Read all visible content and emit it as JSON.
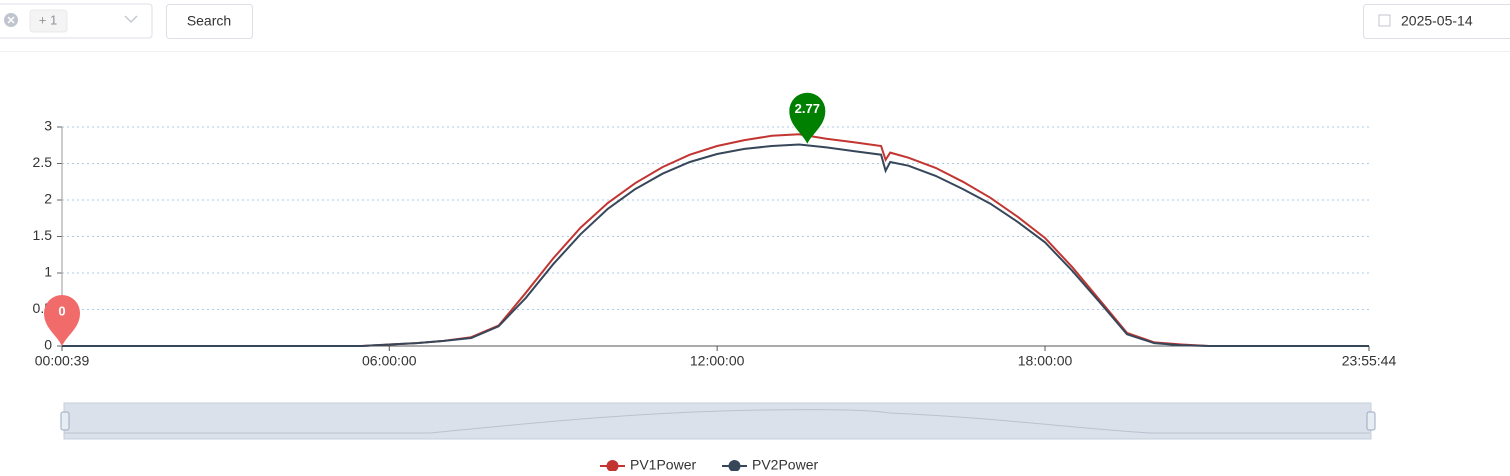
{
  "toolbar": {
    "tag": "+ 1",
    "search_button": "Search",
    "date": "2025-05-14"
  },
  "chart_data": {
    "type": "line",
    "x": [
      "00:00:39",
      "05:30:00",
      "06:00:00",
      "06:30:00",
      "07:00:00",
      "07:30:00",
      "08:00:00",
      "08:30:00",
      "09:00:00",
      "09:30:00",
      "10:00:00",
      "10:30:00",
      "11:00:00",
      "11:30:00",
      "12:00:00",
      "12:30:00",
      "13:00:00",
      "13:30:00",
      "14:00:00",
      "14:30:00",
      "15:00:00",
      "15:05:00",
      "15:10:00",
      "15:30:00",
      "16:00:00",
      "16:30:00",
      "17:00:00",
      "17:30:00",
      "18:00:00",
      "18:30:00",
      "19:00:00",
      "19:30:00",
      "20:00:00",
      "20:30:00",
      "21:00:00",
      "23:55:44"
    ],
    "series": [
      {
        "name": "PV1Power",
        "color": "#c23531",
        "values": [
          0,
          0,
          0.02,
          0.04,
          0.07,
          0.12,
          0.28,
          0.73,
          1.2,
          1.62,
          1.96,
          2.23,
          2.45,
          2.62,
          2.74,
          2.82,
          2.88,
          2.9,
          2.84,
          2.79,
          2.74,
          2.55,
          2.65,
          2.58,
          2.44,
          2.25,
          2.03,
          1.77,
          1.48,
          1.08,
          0.63,
          0.18,
          0.05,
          0.02,
          0,
          0
        ]
      },
      {
        "name": "PV2Power",
        "color": "#37475a",
        "values": [
          0,
          0,
          0.02,
          0.04,
          0.07,
          0.11,
          0.27,
          0.66,
          1.12,
          1.53,
          1.88,
          2.15,
          2.36,
          2.52,
          2.63,
          2.7,
          2.74,
          2.76,
          2.72,
          2.67,
          2.62,
          2.4,
          2.52,
          2.47,
          2.33,
          2.15,
          1.95,
          1.7,
          1.42,
          1.03,
          0.6,
          0.16,
          0.04,
          0.01,
          0,
          0
        ]
      }
    ],
    "xlim": [
      "00:00:39",
      "23:55:44"
    ],
    "xticks": [
      "00:00:39",
      "06:00:00",
      "12:00:00",
      "18:00:00",
      "23:55:44"
    ],
    "ylim": [
      0,
      3
    ],
    "yticks": [
      0,
      0.5,
      1,
      1.5,
      2,
      2.5,
      3
    ],
    "grid": true,
    "max_point": {
      "x": "13:39:00",
      "value": 2.77,
      "color": "#008000"
    },
    "min_point": {
      "x": "00:00:39",
      "value": 0,
      "color": "#f26b6b"
    }
  }
}
